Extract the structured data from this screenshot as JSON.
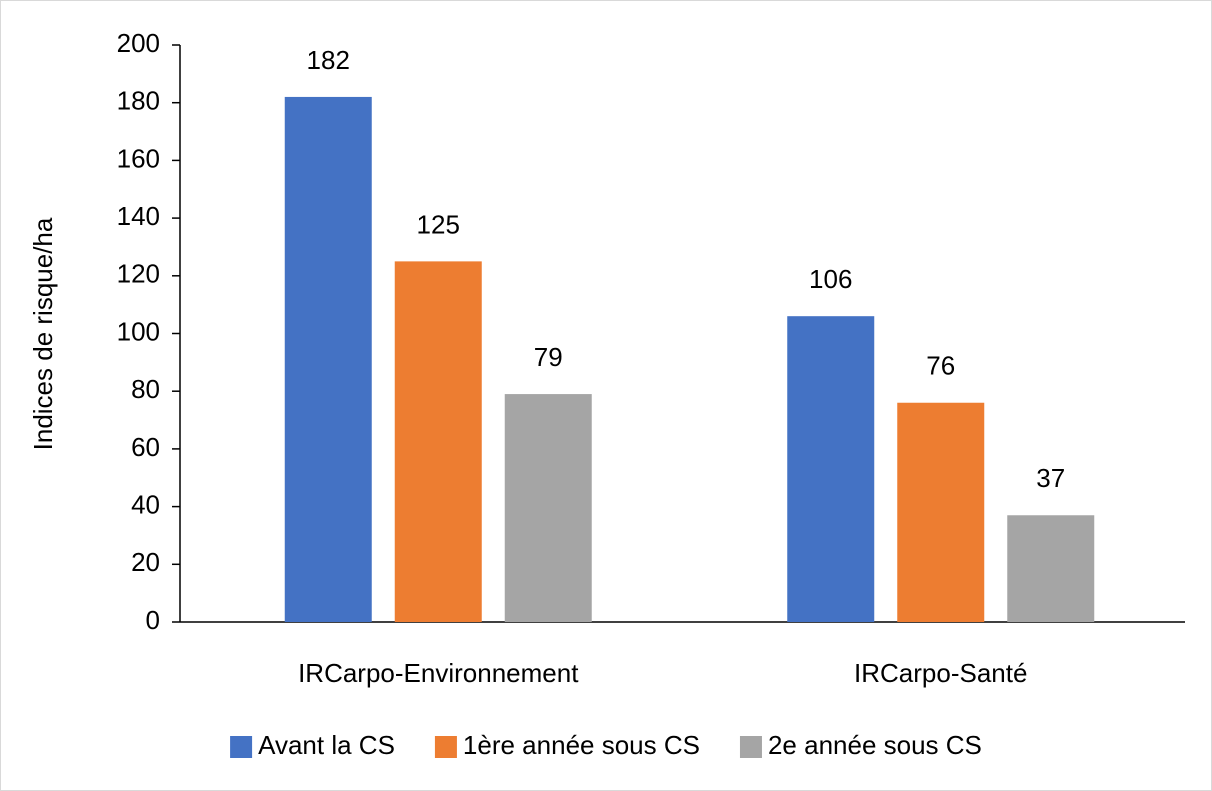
{
  "chart_data": {
    "type": "bar",
    "y_label": "Indices de risque/ha",
    "categories": [
      "IRCarpo-Environnement",
      "IRCarpo-Santé"
    ],
    "series": [
      {
        "name": "Avant la CS",
        "color": "#4472c4",
        "values": [
          182,
          106
        ]
      },
      {
        "name": "1ère année sous CS",
        "color": "#ed7d31",
        "values": [
          125,
          76
        ]
      },
      {
        "name": "2e année sous CS",
        "color": "#a5a5a5",
        "values": [
          79,
          37
        ]
      }
    ],
    "ylim": [
      0,
      200
    ],
    "yticks": [
      0,
      20,
      40,
      60,
      80,
      100,
      120,
      140,
      160,
      180,
      200
    ],
    "legend": "bottom"
  }
}
